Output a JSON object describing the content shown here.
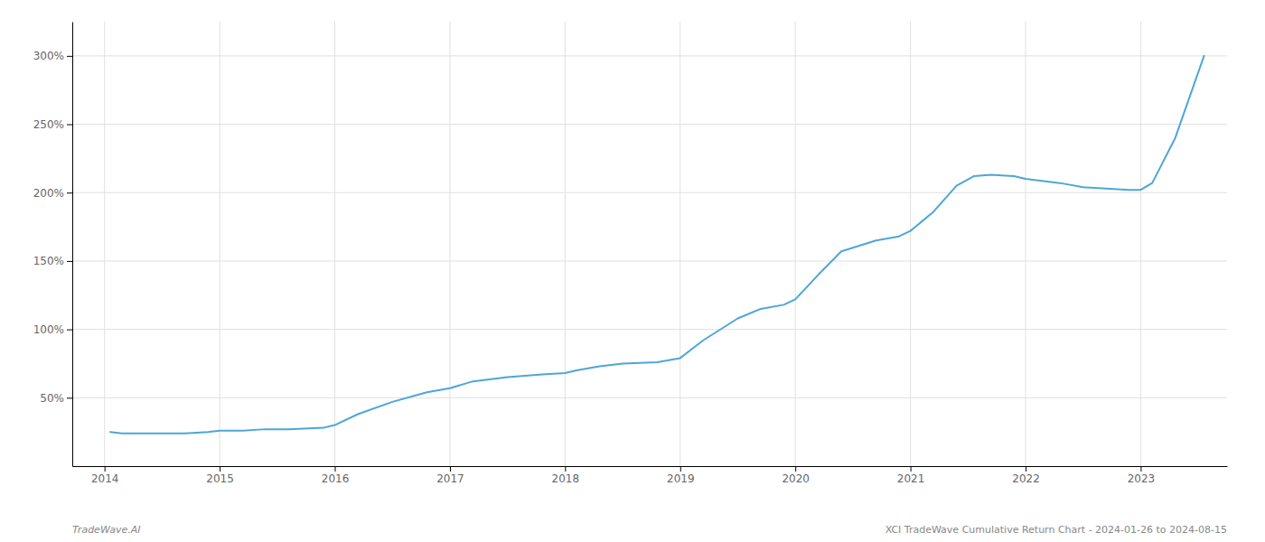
{
  "chart_data": {
    "type": "line",
    "x": [
      2014.05,
      2014.15,
      2014.3,
      2014.5,
      2014.7,
      2014.9,
      2015.0,
      2015.2,
      2015.4,
      2015.6,
      2015.9,
      2016.0,
      2016.2,
      2016.5,
      2016.8,
      2017.0,
      2017.2,
      2017.5,
      2017.8,
      2018.0,
      2018.1,
      2018.3,
      2018.5,
      2018.8,
      2019.0,
      2019.2,
      2019.5,
      2019.7,
      2019.9,
      2020.0,
      2020.2,
      2020.4,
      2020.7,
      2020.9,
      2021.0,
      2021.2,
      2021.4,
      2021.55,
      2021.7,
      2021.9,
      2022.0,
      2022.3,
      2022.5,
      2022.7,
      2022.9,
      2023.0,
      2023.1,
      2023.3,
      2023.55
    ],
    "values": [
      25,
      24,
      24,
      24,
      24,
      25,
      26,
      26,
      27,
      27,
      28,
      30,
      38,
      47,
      54,
      57,
      62,
      65,
      67,
      68,
      70,
      73,
      75,
      76,
      79,
      92,
      108,
      115,
      118,
      122,
      140,
      157,
      165,
      168,
      172,
      186,
      205,
      212,
      213,
      212,
      210,
      207,
      204,
      203,
      202,
      202,
      207,
      240,
      300
    ],
    "color": "#4da6d8",
    "xlim": [
      2013.72,
      2023.75
    ],
    "xticks": [
      2014,
      2015,
      2016,
      2017,
      2018,
      2019,
      2020,
      2021,
      2022,
      2023
    ],
    "ylim": [
      0,
      325
    ],
    "yticks": [
      {
        "value": 50,
        "label": "50%"
      },
      {
        "value": 100,
        "label": "100%"
      },
      {
        "value": 150,
        "label": "150%"
      },
      {
        "value": 200,
        "label": "200%"
      },
      {
        "value": 250,
        "label": "250%"
      },
      {
        "value": 300,
        "label": "300%"
      }
    ],
    "grid": true,
    "annotations": [
      "TradeWave.AI",
      "XCI TradeWave Cumulative Return Chart - 2024-01-26 to 2024-08-15"
    ]
  }
}
